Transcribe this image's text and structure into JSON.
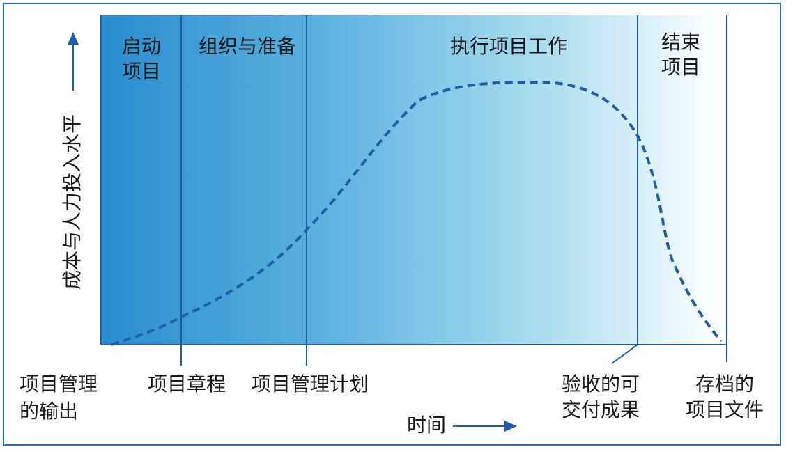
{
  "y_axis_label": "成本与人力投入水平",
  "x_axis_label": "时间",
  "phases": [
    {
      "lines": [
        "启动",
        "项目"
      ]
    },
    {
      "lines": [
        "组织与准备"
      ]
    },
    {
      "lines": [
        "执行项目工作"
      ]
    },
    {
      "lines": [
        "结束",
        "项目"
      ]
    }
  ],
  "outputs": [
    {
      "lines": [
        "项目管理",
        "的输出"
      ]
    },
    {
      "lines": [
        "项目章程"
      ]
    },
    {
      "lines": [
        "项目管理计划"
      ]
    },
    {
      "lines": [
        "验收的可",
        "交付成果"
      ]
    },
    {
      "lines": [
        "存档的",
        "项目文件"
      ]
    }
  ]
}
